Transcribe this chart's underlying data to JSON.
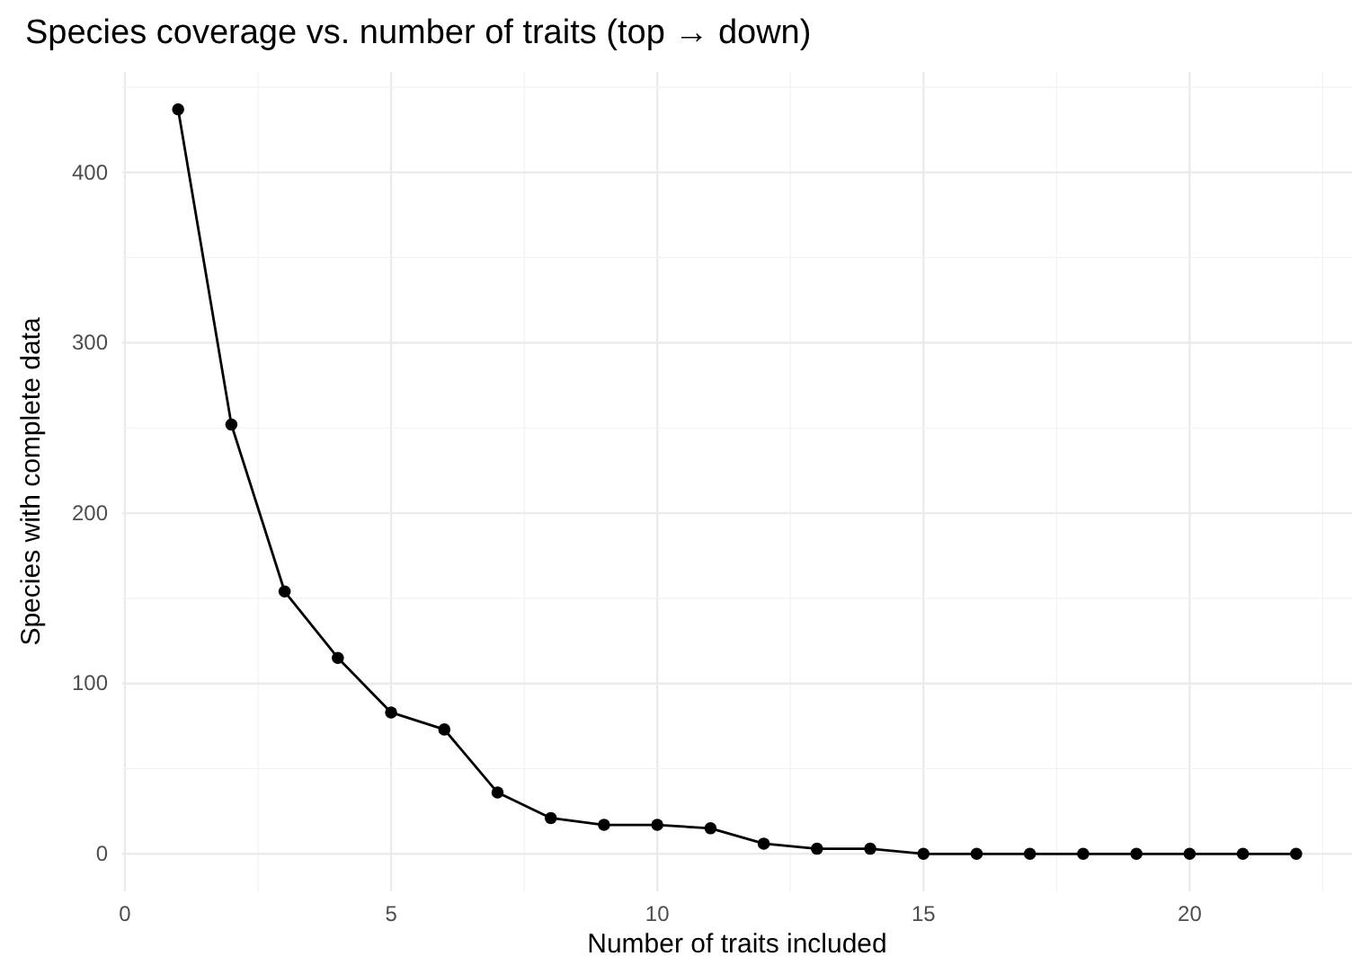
{
  "chart_data": {
    "type": "line",
    "title": "Species coverage vs. number of traits (top → down)",
    "xlabel": "Number of traits included",
    "ylabel": "Species with complete data",
    "x": [
      1,
      2,
      3,
      4,
      5,
      6,
      7,
      8,
      9,
      10,
      11,
      12,
      13,
      14,
      15,
      16,
      17,
      18,
      19,
      20,
      21,
      22
    ],
    "series": [
      {
        "color": "#000000",
        "values": [
          437,
          252,
          154,
          115,
          83,
          73,
          36,
          21,
          17,
          17,
          15,
          6,
          3,
          3,
          0,
          0,
          0,
          0,
          0,
          0,
          0,
          0
        ]
      }
    ],
    "xlim": [
      -0.05,
      23.05
    ],
    "ylim": [
      -22,
      459
    ],
    "xticks": [
      0,
      5,
      10,
      15,
      20
    ],
    "yticks": [
      0,
      100,
      200,
      300,
      400
    ],
    "grid": true,
    "marker": "circle",
    "line_style": "solid"
  }
}
